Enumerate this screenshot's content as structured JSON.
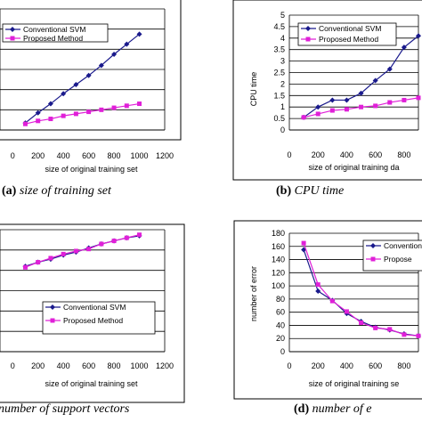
{
  "colors": {
    "conventional": "#1a1a8c",
    "proposed": "#e020d8",
    "grid": "#000000",
    "frame": "#000000"
  },
  "legend_labels": [
    "Conventional SVM",
    "Proposed Method"
  ],
  "captions": [
    {
      "letter": "(a)",
      "text": "size of training set"
    },
    {
      "letter": "(b)",
      "text": "CPU time"
    },
    {
      "letter": "",
      "text": "number of support vectors"
    },
    {
      "letter": "(d)",
      "text": "number of e"
    }
  ],
  "chart_data": [
    {
      "type": "line",
      "panel": "a",
      "xlabel": "size of original training set",
      "ylabel": "",
      "x_ticks": [
        "0",
        "200",
        "400",
        "600",
        "800",
        "1000",
        "1200"
      ],
      "y_ticks": [],
      "xlim": [
        -100,
        1200
      ],
      "ylim": [
        0,
        6
      ],
      "grid": true,
      "legend": "top-left",
      "series": [
        {
          "name": "Conventional SVM",
          "marker": "diamond",
          "x": [
            100,
            200,
            300,
            400,
            500,
            600,
            700,
            800,
            900,
            1000
          ],
          "y": [
            0.35,
            0.85,
            1.3,
            1.8,
            2.25,
            2.7,
            3.2,
            3.75,
            4.25,
            4.75
          ]
        },
        {
          "name": "Proposed Method",
          "marker": "square",
          "x": [
            100,
            200,
            300,
            400,
            500,
            600,
            700,
            800,
            900,
            1000
          ],
          "y": [
            0.3,
            0.45,
            0.55,
            0.7,
            0.8,
            0.9,
            1.0,
            1.1,
            1.2,
            1.3
          ]
        }
      ]
    },
    {
      "type": "line",
      "panel": "b",
      "xlabel": "size of original training da",
      "ylabel": "CPU time",
      "x_ticks": [
        "0",
        "200",
        "400",
        "600",
        "800"
      ],
      "y_ticks": [
        "0",
        "0.5",
        "1",
        "1.5",
        "2",
        "2.5",
        "3",
        "3.5",
        "4",
        "4.5",
        "5"
      ],
      "xlim": [
        0,
        900
      ],
      "ylim": [
        0,
        5
      ],
      "grid": true,
      "legend": "top",
      "series": [
        {
          "name": "Conventional SVM",
          "marker": "diamond",
          "x": [
            100,
            200,
            300,
            400,
            500,
            600,
            700,
            800,
            900
          ],
          "y": [
            0.55,
            1.0,
            1.3,
            1.3,
            1.6,
            2.15,
            2.65,
            3.6,
            4.1
          ]
        },
        {
          "name": "Proposed Method",
          "marker": "square",
          "x": [
            100,
            200,
            300,
            400,
            500,
            600,
            700,
            800,
            900
          ],
          "y": [
            0.55,
            0.7,
            0.85,
            0.9,
            1.0,
            1.05,
            1.2,
            1.3,
            1.4
          ]
        }
      ]
    },
    {
      "type": "line",
      "panel": "c",
      "xlabel": "size of original training set",
      "ylabel": "",
      "x_ticks": [
        "0",
        "200",
        "400",
        "600",
        "800",
        "1000",
        "1200"
      ],
      "y_ticks": [],
      "xlim": [
        -100,
        1200
      ],
      "ylim": [
        0,
        6
      ],
      "grid": true,
      "legend": "bottom",
      "series": [
        {
          "name": "Conventional SVM",
          "marker": "diamond",
          "x": [
            100,
            200,
            300,
            400,
            500,
            600,
            700,
            800,
            900,
            1000
          ],
          "y": [
            4.2,
            4.4,
            4.55,
            4.75,
            4.9,
            5.1,
            5.3,
            5.45,
            5.6,
            5.7
          ]
        },
        {
          "name": "Proposed Method",
          "marker": "square",
          "x": [
            100,
            200,
            300,
            400,
            500,
            600,
            700,
            800,
            900,
            1000
          ],
          "y": [
            4.15,
            4.4,
            4.6,
            4.8,
            4.95,
            5.05,
            5.3,
            5.45,
            5.6,
            5.75
          ]
        }
      ]
    },
    {
      "type": "line",
      "panel": "d",
      "xlabel": "size of original training se",
      "ylabel": "number of error",
      "x_ticks": [
        "0",
        "200",
        "400",
        "600",
        "800"
      ],
      "y_ticks": [
        "0",
        "20",
        "40",
        "60",
        "80",
        "100",
        "120",
        "140",
        "160",
        "180"
      ],
      "xlim": [
        0,
        900
      ],
      "ylim": [
        0,
        180
      ],
      "grid": true,
      "legend": "top-right",
      "series": [
        {
          "name": "Convention",
          "marker": "diamond",
          "x": [
            100,
            200,
            300,
            400,
            500,
            600,
            700,
            800,
            900
          ],
          "y": [
            155,
            92,
            78,
            58,
            46,
            37,
            33,
            27,
            24
          ]
        },
        {
          "name": "Propose",
          "marker": "square",
          "x": [
            100,
            200,
            300,
            400,
            500,
            600,
            700,
            800,
            900
          ],
          "y": [
            165,
            102,
            77,
            61,
            44,
            36,
            34,
            26,
            24
          ]
        }
      ]
    }
  ]
}
